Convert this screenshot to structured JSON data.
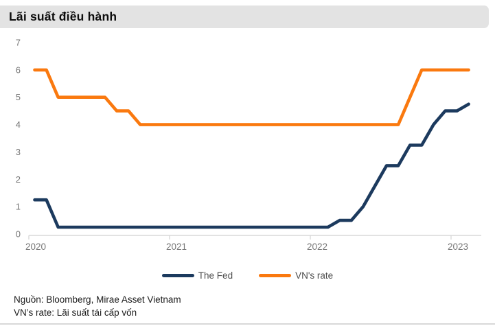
{
  "header": {
    "title": "Lãi suất điều hành"
  },
  "legend": {
    "items": [
      {
        "label": "The Fed",
        "color": "#1c3a5e"
      },
      {
        "label": "VN's rate",
        "color": "#fa790f"
      }
    ]
  },
  "footer": {
    "source_line": "Nguồn: Bloomberg, Mirae Asset Vietnam",
    "note_line": "VN’s rate: Lãi suất tái cấp vốn"
  },
  "colors": {
    "fed_line": "#1c3a5e",
    "vn_line": "#fa790f",
    "axis_line": "#d9d9d9",
    "tick_label": "#767676",
    "title_bar_bg": "#e3e3e3",
    "legend_text": "#4d4d4d",
    "footer_rule": "#d8d8d8"
  },
  "chart_data": {
    "type": "line",
    "title": "Lãi suất điều hành",
    "xlabel": "",
    "ylabel": "",
    "x_unit": "month",
    "x_start": "2020-01",
    "x_end": "2023-02",
    "ylim": [
      0,
      7
    ],
    "y_ticks": [
      0,
      1,
      2,
      3,
      4,
      5,
      6,
      7
    ],
    "x_tick_labels": [
      "2020",
      "2021",
      "2022",
      "2023"
    ],
    "x_tick_month_positions": [
      0,
      12,
      24,
      36
    ],
    "grid": false,
    "legend_position": "bottom",
    "series": [
      {
        "name": "The Fed",
        "color": "#1c3a5e",
        "values": [
          1.25,
          1.25,
          0.25,
          0.25,
          0.25,
          0.25,
          0.25,
          0.25,
          0.25,
          0.25,
          0.25,
          0.25,
          0.25,
          0.25,
          0.25,
          0.25,
          0.25,
          0.25,
          0.25,
          0.25,
          0.25,
          0.25,
          0.25,
          0.25,
          0.25,
          0.25,
          0.5,
          0.5,
          1.0,
          1.75,
          2.5,
          2.5,
          3.25,
          3.25,
          4.0,
          4.5,
          4.5,
          4.75
        ]
      },
      {
        "name": "VN's rate",
        "color": "#fa790f",
        "values": [
          6,
          6,
          5,
          5,
          5,
          5,
          5,
          4.5,
          4.5,
          4,
          4,
          4,
          4,
          4,
          4,
          4,
          4,
          4,
          4,
          4,
          4,
          4,
          4,
          4,
          4,
          4,
          4,
          4,
          4,
          4,
          4,
          4,
          5,
          6,
          6,
          6,
          6,
          6
        ]
      }
    ]
  }
}
